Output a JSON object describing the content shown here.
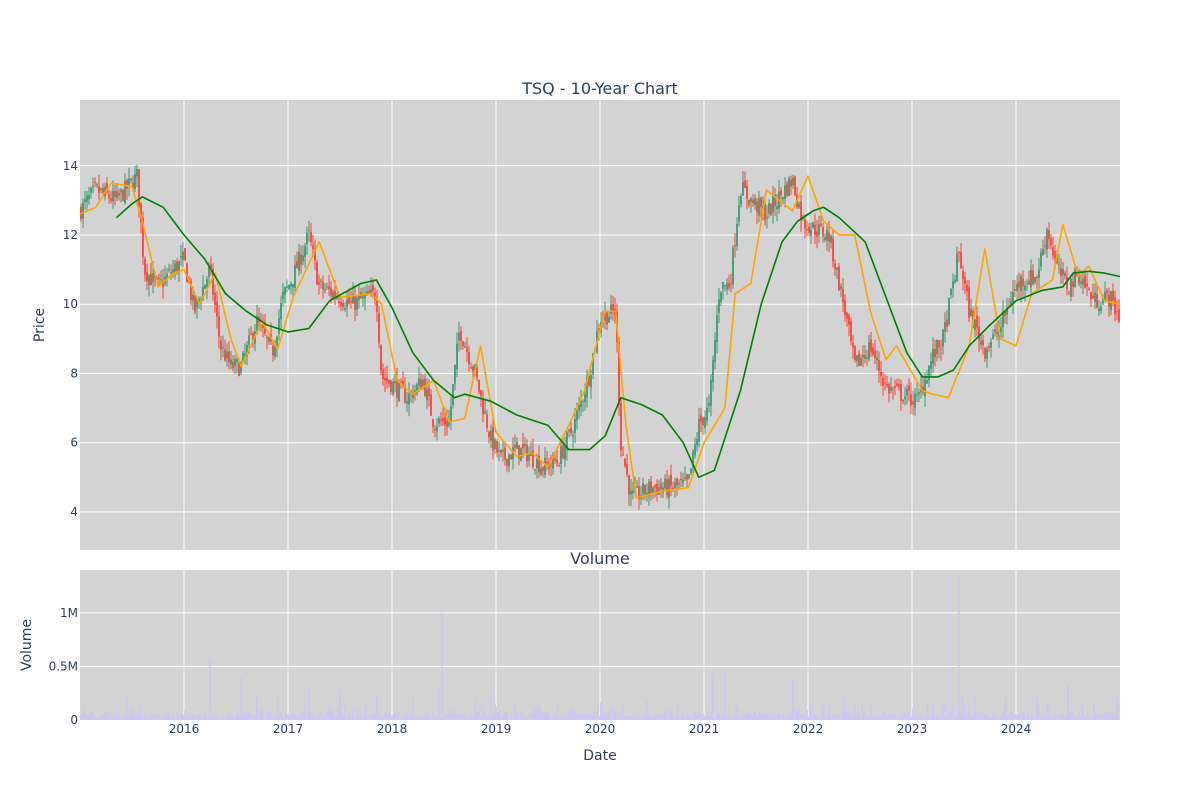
{
  "chart_data": [
    {
      "type": "candlestick",
      "title": "TSQ - 10-Year Chart",
      "ylabel": "Price",
      "xlabel": "",
      "ylim": [
        2.9,
        15.9
      ],
      "yticks": [
        4,
        6,
        8,
        10,
        12,
        14
      ],
      "xlim": [
        2015.0,
        2025.0
      ],
      "xticks": [
        2016,
        2017,
        2018,
        2019,
        2020,
        2021,
        2022,
        2023,
        2024
      ],
      "grid": true,
      "legend": "none",
      "series": [
        {
          "kind": "close-anchors",
          "x": [
            2015.0,
            2015.15,
            2015.35,
            2015.55,
            2015.62,
            2015.75,
            2015.9,
            2016.0,
            2016.1,
            2016.25,
            2016.35,
            2016.45,
            2016.55,
            2016.7,
            2016.85,
            2016.95,
            2017.05,
            2017.2,
            2017.3,
            2017.45,
            2017.6,
            2017.85,
            2017.9,
            2018.0,
            2018.15,
            2018.3,
            2018.4,
            2018.55,
            2018.65,
            2018.8,
            2018.95,
            2019.05,
            2019.2,
            2019.3,
            2019.45,
            2019.6,
            2019.75,
            2019.9,
            2020.0,
            2020.15,
            2020.2,
            2020.3,
            2020.5,
            2020.7,
            2020.85,
            2020.95,
            2021.05,
            2021.15,
            2021.25,
            2021.35,
            2021.45,
            2021.6,
            2021.75,
            2021.85,
            2021.95,
            2022.05,
            2022.2,
            2022.35,
            2022.45,
            2022.6,
            2022.75,
            2022.9,
            2023.05,
            2023.2,
            2023.3,
            2023.45,
            2023.55,
            2023.7,
            2023.85,
            2023.95,
            2024.05,
            2024.2,
            2024.3,
            2024.4,
            2024.5,
            2024.6,
            2024.75,
            2024.9,
            2025.0
          ],
          "close": [
            12.7,
            13.3,
            13.0,
            13.7,
            11.0,
            10.5,
            11.0,
            11.3,
            9.8,
            11.0,
            8.8,
            8.2,
            8.2,
            9.5,
            8.6,
            10.2,
            10.8,
            12.0,
            10.5,
            10.3,
            10.0,
            10.3,
            7.9,
            7.7,
            7.3,
            7.8,
            6.6,
            6.6,
            9.3,
            8.0,
            6.1,
            5.5,
            5.8,
            5.7,
            5.3,
            5.5,
            6.5,
            8.0,
            9.6,
            9.8,
            6.0,
            4.4,
            4.7,
            4.7,
            4.8,
            6.5,
            7.0,
            10.5,
            10.6,
            13.4,
            13.0,
            12.6,
            13.2,
            13.6,
            12.4,
            12.2,
            12.0,
            9.9,
            8.2,
            8.8,
            7.6,
            7.4,
            7.2,
            8.5,
            9.0,
            11.5,
            9.8,
            8.7,
            9.3,
            10.2,
            10.7,
            10.8,
            12.2,
            11.0,
            10.5,
            10.9,
            10.1,
            10.2,
            9.6
          ],
          "color_up": "#3d9970",
          "color_down": "#ff4136"
        },
        {
          "kind": "moving-average-short",
          "x": [
            2015.0,
            2015.15,
            2015.3,
            2015.5,
            2015.6,
            2015.75,
            2015.9,
            2016.0,
            2016.15,
            2016.3,
            2016.45,
            2016.55,
            2016.75,
            2016.9,
            2017.05,
            2017.3,
            2017.5,
            2017.8,
            2017.9,
            2018.05,
            2018.2,
            2018.4,
            2018.55,
            2018.7,
            2018.85,
            2019.0,
            2019.2,
            2019.35,
            2019.5,
            2019.7,
            2019.85,
            2020.05,
            2020.15,
            2020.25,
            2020.35,
            2020.6,
            2020.85,
            2021.0,
            2021.2,
            2021.3,
            2021.45,
            2021.6,
            2021.85,
            2022.0,
            2022.15,
            2022.3,
            2022.45,
            2022.6,
            2022.75,
            2022.85,
            2023.1,
            2023.2,
            2023.35,
            2023.55,
            2023.7,
            2023.85,
            2024.0,
            2024.15,
            2024.35,
            2024.45,
            2024.6,
            2024.7,
            2024.85,
            2025.0
          ],
          "y": [
            12.6,
            12.8,
            13.5,
            13.4,
            12.4,
            10.5,
            10.9,
            11.0,
            10.0,
            10.9,
            9.0,
            8.2,
            9.5,
            8.7,
            10.2,
            11.8,
            10.2,
            10.3,
            10.0,
            7.8,
            7.4,
            7.8,
            6.6,
            6.7,
            8.8,
            6.3,
            5.6,
            5.7,
            5.3,
            6.5,
            7.5,
            9.8,
            9.8,
            6.5,
            4.4,
            4.6,
            4.7,
            6.0,
            7.0,
            10.3,
            10.6,
            13.3,
            12.7,
            13.7,
            12.4,
            12.0,
            12.0,
            9.8,
            8.4,
            8.8,
            7.5,
            7.4,
            7.3,
            8.8,
            11.6,
            9.0,
            8.8,
            10.3,
            10.7,
            12.3,
            10.8,
            11.1,
            10.1,
            10.0
          ],
          "color": "#ffa500"
        },
        {
          "kind": "moving-average-long",
          "x": [
            2015.35,
            2015.5,
            2015.6,
            2015.8,
            2016.0,
            2016.2,
            2016.4,
            2016.6,
            2016.8,
            2017.0,
            2017.2,
            2017.4,
            2017.7,
            2017.85,
            2018.0,
            2018.2,
            2018.4,
            2018.6,
            2018.7,
            2018.95,
            2019.2,
            2019.5,
            2019.7,
            2019.9,
            2020.05,
            2020.2,
            2020.4,
            2020.6,
            2020.8,
            2020.95,
            2021.1,
            2021.35,
            2021.55,
            2021.75,
            2021.9,
            2022.05,
            2022.15,
            2022.3,
            2022.55,
            2022.75,
            2022.95,
            2023.1,
            2023.25,
            2023.4,
            2023.55,
            2023.75,
            2024.0,
            2024.25,
            2024.45,
            2024.55,
            2024.7,
            2024.85,
            2025.0
          ],
          "y": [
            12.5,
            12.9,
            13.1,
            12.8,
            12.0,
            11.3,
            10.3,
            9.8,
            9.4,
            9.2,
            9.3,
            10.1,
            10.6,
            10.7,
            9.9,
            8.6,
            7.8,
            7.3,
            7.4,
            7.2,
            6.8,
            6.5,
            5.8,
            5.8,
            6.2,
            7.3,
            7.1,
            6.8,
            6.0,
            5.0,
            5.2,
            7.5,
            10.0,
            11.8,
            12.4,
            12.7,
            12.8,
            12.5,
            11.8,
            10.2,
            8.6,
            7.9,
            7.9,
            8.1,
            8.8,
            9.4,
            10.1,
            10.4,
            10.5,
            10.9,
            10.95,
            10.9,
            10.8
          ],
          "color": "#008000"
        }
      ]
    },
    {
      "type": "bar",
      "title": "Volume",
      "xlabel": "Date",
      "ylabel": "Volume",
      "ylim": [
        0,
        1400000
      ],
      "yticks": [
        0,
        500000,
        1000000
      ],
      "ytick_labels": [
        "0",
        "0.5M",
        "1M"
      ],
      "xlim": [
        2015.0,
        2025.0
      ],
      "xticks": [
        2016,
        2017,
        2018,
        2019,
        2020,
        2021,
        2022,
        2023,
        2024
      ],
      "grid": true,
      "legend": "none",
      "color": "#c8c8f0",
      "spikes": {
        "x": [
          2015.45,
          2016.25,
          2016.55,
          2016.7,
          2016.9,
          2017.2,
          2017.5,
          2017.85,
          2018.2,
          2018.45,
          2018.48,
          2018.8,
          2018.95,
          2020.45,
          2021.08,
          2021.2,
          2021.85,
          2022.35,
          2023.2,
          2023.45,
          2023.48,
          2023.6,
          2023.9,
          2024.2,
          2024.5,
          2024.75,
          2024.97
        ],
        "values": [
          230000,
          560000,
          400000,
          240000,
          200000,
          290000,
          290000,
          220000,
          200000,
          280000,
          1000000,
          190000,
          240000,
          180000,
          420000,
          430000,
          370000,
          200000,
          140000,
          1350000,
          240000,
          240000,
          250000,
          220000,
          340000,
          180000,
          220000
        ]
      }
    }
  ]
}
